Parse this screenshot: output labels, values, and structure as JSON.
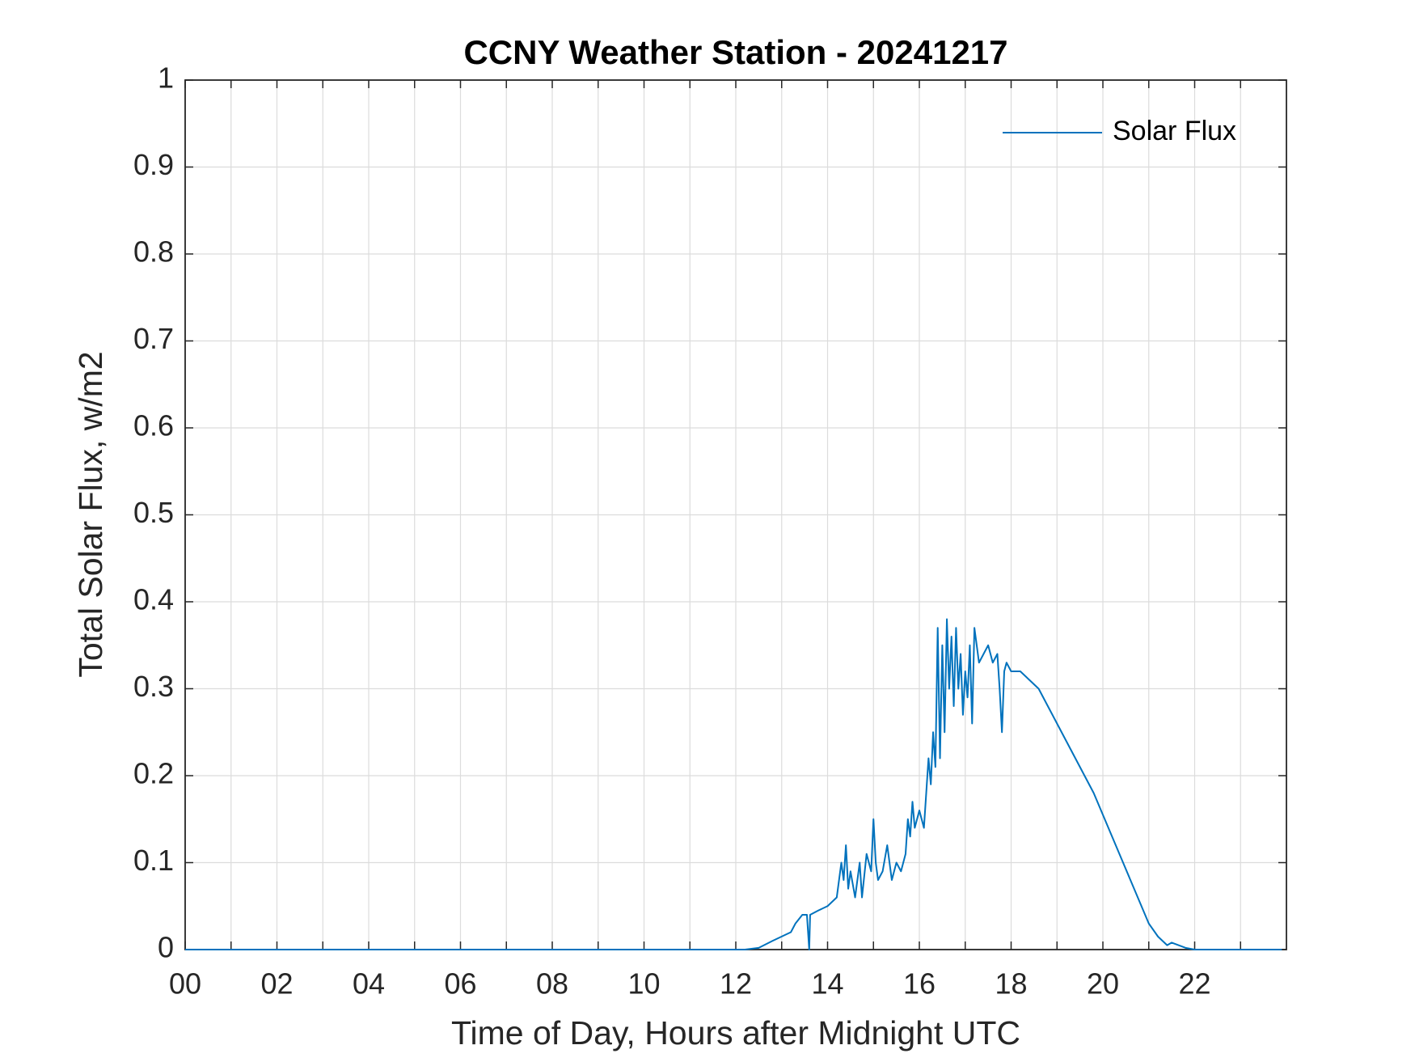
{
  "chart_data": {
    "type": "line",
    "title": "CCNY Weather Station - 20241217",
    "xlabel": "Time of Day, Hours after Midnight UTC",
    "ylabel": "Total Solar Flux, w/m2",
    "xlim": [
      0,
      24
    ],
    "ylim": [
      0,
      1
    ],
    "xticks": [
      {
        "value": 0,
        "label": "00"
      },
      {
        "value": 2,
        "label": "02"
      },
      {
        "value": 4,
        "label": "04"
      },
      {
        "value": 6,
        "label": "06"
      },
      {
        "value": 8,
        "label": "08"
      },
      {
        "value": 10,
        "label": "10"
      },
      {
        "value": 12,
        "label": "12"
      },
      {
        "value": 14,
        "label": "14"
      },
      {
        "value": 16,
        "label": "16"
      },
      {
        "value": 18,
        "label": "18"
      },
      {
        "value": 20,
        "label": "20"
      },
      {
        "value": 22,
        "label": "22"
      }
    ],
    "xminorticks": [
      1,
      3,
      5,
      7,
      9,
      11,
      13,
      15,
      17,
      19,
      21,
      23
    ],
    "yticks": [
      0,
      0.1,
      0.2,
      0.3,
      0.4,
      0.5,
      0.6,
      0.7,
      0.8,
      0.9,
      1
    ],
    "grid": true,
    "legend": "northeast",
    "series": [
      {
        "name": "Solar Flux",
        "color": "#0072bd",
        "x": [
          0,
          12.2,
          12.5,
          12.8,
          13.0,
          13.2,
          13.3,
          13.45,
          13.55,
          13.6,
          13.62,
          13.8,
          14.0,
          14.1,
          14.2,
          14.3,
          14.35,
          14.4,
          14.45,
          14.5,
          14.6,
          14.7,
          14.75,
          14.85,
          14.95,
          15.0,
          15.05,
          15.1,
          15.2,
          15.3,
          15.4,
          15.5,
          15.6,
          15.7,
          15.75,
          15.8,
          15.85,
          15.9,
          16.0,
          16.1,
          16.15,
          16.2,
          16.25,
          16.3,
          16.35,
          16.4,
          16.45,
          16.5,
          16.55,
          16.6,
          16.65,
          16.7,
          16.75,
          16.8,
          16.85,
          16.9,
          16.95,
          17.0,
          17.05,
          17.1,
          17.15,
          17.2,
          17.3,
          17.4,
          17.5,
          17.6,
          17.7,
          17.75,
          17.8,
          17.85,
          17.9,
          18.0,
          18.2,
          18.4,
          18.6,
          18.8,
          19.0,
          19.2,
          19.4,
          19.6,
          19.8,
          20.0,
          20.2,
          20.4,
          20.6,
          20.8,
          21.0,
          21.2,
          21.4,
          21.5,
          21.8,
          22.0,
          23.9
        ],
        "values": [
          0,
          0,
          0.002,
          0.01,
          0.015,
          0.02,
          0.03,
          0.04,
          0.04,
          0,
          0.04,
          0.045,
          0.05,
          0.055,
          0.06,
          0.1,
          0.08,
          0.12,
          0.07,
          0.09,
          0.06,
          0.1,
          0.06,
          0.11,
          0.09,
          0.15,
          0.1,
          0.08,
          0.09,
          0.12,
          0.08,
          0.1,
          0.09,
          0.11,
          0.15,
          0.13,
          0.17,
          0.14,
          0.16,
          0.14,
          0.18,
          0.22,
          0.19,
          0.25,
          0.21,
          0.37,
          0.22,
          0.35,
          0.25,
          0.38,
          0.3,
          0.36,
          0.28,
          0.37,
          0.3,
          0.34,
          0.27,
          0.32,
          0.29,
          0.35,
          0.26,
          0.37,
          0.33,
          0.34,
          0.35,
          0.33,
          0.34,
          0.3,
          0.25,
          0.32,
          0.33,
          0.32,
          0.32,
          0.31,
          0.3,
          0.28,
          0.26,
          0.24,
          0.22,
          0.2,
          0.18,
          0.155,
          0.13,
          0.105,
          0.08,
          0.055,
          0.03,
          0.015,
          0.005,
          0.008,
          0.002,
          0,
          0
        ]
      }
    ]
  }
}
